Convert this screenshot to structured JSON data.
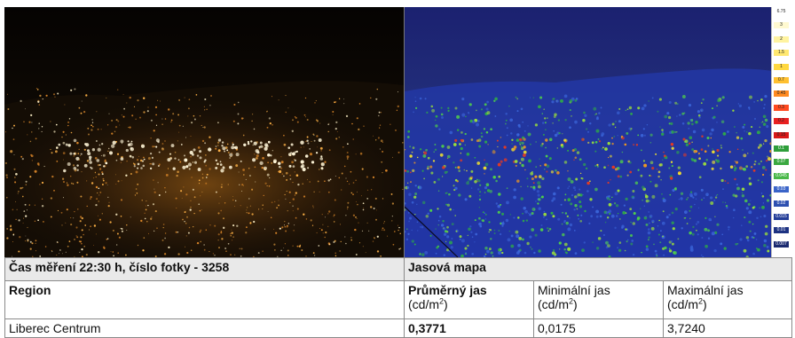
{
  "photo_header": "Čas měření 22:30 h, číslo fotky - 3258",
  "map_header": "Jasová mapa",
  "columns": {
    "region": "Region",
    "avg": "Průměrný jas",
    "min": "Minimální jas",
    "max": "Maximální jas",
    "unit_prefix": "(cd/m",
    "unit_exp": "2",
    "unit_suffix": ")"
  },
  "rows": [
    {
      "region": "Liberec Centrum",
      "avg": "0,3771",
      "min": "0,0175",
      "max": "3,7240"
    }
  ],
  "scale_labels": [
    "6.75",
    "3",
    "2",
    "1.5",
    "1",
    "0.7",
    "0.45",
    "0.3",
    "0.2",
    "0.15",
    "0.1",
    "0.07",
    "0.045",
    "0.03",
    "0.02",
    "0.015",
    "0.01",
    "0.007"
  ],
  "colors": {
    "header_bg": "#e9e9e9",
    "border": "#8a8a8a",
    "map_base": "#1a1f6e"
  }
}
